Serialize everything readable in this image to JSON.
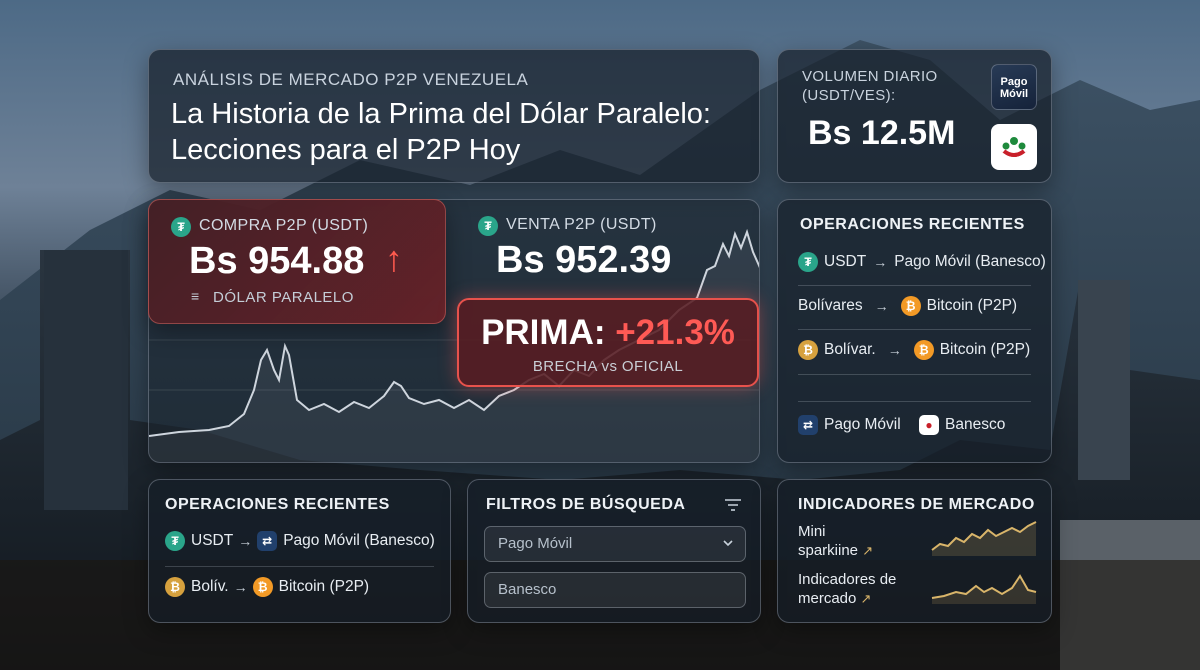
{
  "header": {
    "kicker": "ANÁLISIS DE MERCADO P2P VENEZUELA",
    "title": "La Historia de la Prima del Dólar Paralelo: Lecciones para el P2P Hoy"
  },
  "volume": {
    "label": "VOLUMEN DIARIO (USDT/VES):",
    "value": "Bs 12.5M",
    "logo_pago_movil": "Pago Móvil"
  },
  "buy": {
    "label": "COMPRA P2P (USDT)",
    "value": "Bs 954.88",
    "arrow": "↑",
    "sub": "DÓLAR PARALELO",
    "icon": "tether-icon"
  },
  "sell": {
    "label": "VENTA P2P (USDT)",
    "value": "Bs 952.39",
    "icon": "tether-icon"
  },
  "prima": {
    "label": "PRIMA:",
    "value": "+21.3%",
    "sub": "BRECHA vs OFICIAL"
  },
  "recent_right": {
    "title": "OPERACIONES RECIENTES",
    "rows": [
      {
        "from": "USDT",
        "to": "Pago Móvil (Banesco)"
      },
      {
        "from": "Bolívares",
        "to": "Bitcoin (P2P)"
      },
      {
        "from": "Bolívar.",
        "to": "Bitcoin (P2P)"
      }
    ],
    "footer": {
      "pago_movil": "Pago Móvil",
      "banesco": "Banesco"
    }
  },
  "recent_bottom": {
    "title": "OPERACIONES RECIENTES",
    "rows": [
      {
        "from": "USDT",
        "to": "Pago Móvil (Banesco)"
      },
      {
        "from": "Bolív.",
        "to": "Bitcoin (P2P)"
      }
    ]
  },
  "filters": {
    "title": "FILTROS DE BÚSQUEDA",
    "select_value": "Pago Móvil",
    "input_value": "Banesco"
  },
  "indicators": {
    "title": "INDICADORES DE MERCADO",
    "items": [
      {
        "label_line1": "Mini",
        "label_line2": "sparkiine",
        "arrow": "↗"
      },
      {
        "label_line1": "Indicadores de",
        "label_line2": "mercado",
        "arrow": "↗"
      }
    ]
  },
  "colors": {
    "accent_red": "#e8524c",
    "tether_green": "#2aa58a",
    "bitcoin_orange": "#f39a26",
    "sparkline_gold": "#d9b56a"
  }
}
